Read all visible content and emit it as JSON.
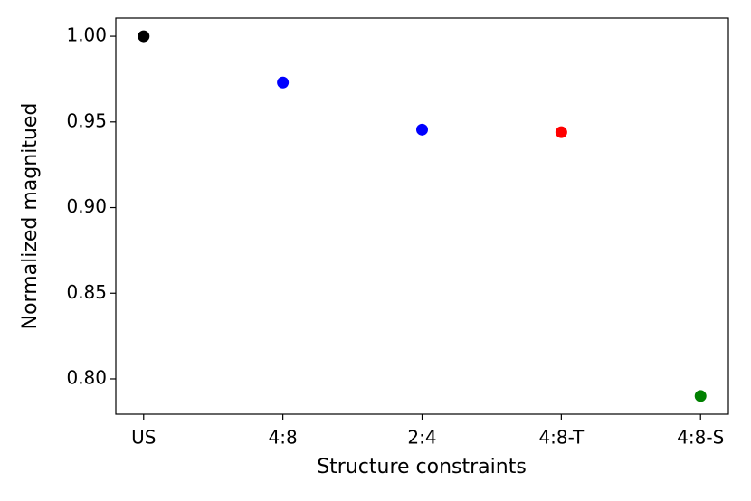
{
  "chart_data": {
    "type": "scatter",
    "xlabel": "Structure constraints",
    "ylabel": "Normalized magnitued",
    "categories": [
      "US",
      "4:8",
      "2:4",
      "4:8-T",
      "4:8-S"
    ],
    "values": [
      1.0,
      0.973,
      0.9455,
      0.944,
      0.79
    ],
    "colors": [
      "#000000",
      "#0000ff",
      "#0000ff",
      "#ff0000",
      "#008000"
    ],
    "ylim": [
      0.7794,
      1.0106
    ],
    "yticks": [
      {
        "value": 0.8,
        "label": "0.80"
      },
      0.85,
      {
        "value": 0.9,
        "label": "0.90"
      },
      0.95,
      {
        "value": 1,
        "label": "1.00"
      }
    ]
  }
}
